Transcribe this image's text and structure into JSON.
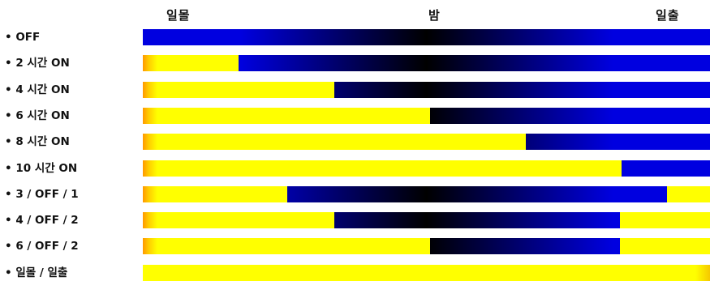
{
  "header": {
    "sunset": "일몰",
    "night": "밤",
    "sunrise": "일출"
  },
  "timeline": {
    "on_color": "#ffff00",
    "off_color": "#0000e0",
    "night_color": "#000000",
    "rows": [
      {
        "label": "• OFF",
        "segments": [
          {
            "state": "off",
            "from": 0.0,
            "to": 1.0
          }
        ]
      },
      {
        "label": "• 2 시간 ON",
        "segments": [
          {
            "state": "on",
            "from": 0.0,
            "to": 0.1688
          },
          {
            "state": "off",
            "from": 0.1688,
            "to": 1.0
          }
        ]
      },
      {
        "label": "• 4 시간 ON",
        "segments": [
          {
            "state": "on",
            "from": 0.0,
            "to": 0.3376
          },
          {
            "state": "off",
            "from": 0.3376,
            "to": 1.0
          }
        ]
      },
      {
        "label": "• 6 시간 ON",
        "segments": [
          {
            "state": "on",
            "from": 0.0,
            "to": 0.5064
          },
          {
            "state": "off",
            "from": 0.5064,
            "to": 1.0
          }
        ]
      },
      {
        "label": "• 8 시간 ON",
        "segments": [
          {
            "state": "on",
            "from": 0.0,
            "to": 0.6753
          },
          {
            "state": "off",
            "from": 0.6753,
            "to": 1.0
          }
        ]
      },
      {
        "label": "• 10 시간 ON",
        "segments": [
          {
            "state": "on",
            "from": 0.0,
            "to": 0.8441
          },
          {
            "state": "off",
            "from": 0.8441,
            "to": 1.0
          }
        ]
      },
      {
        "label": "• 3 / OFF / 1",
        "segments": [
          {
            "state": "on",
            "from": 0.0,
            "to": 0.2546
          },
          {
            "state": "off",
            "from": 0.2546,
            "to": 0.9242
          },
          {
            "state": "on",
            "from": 0.9242,
            "to": 1.0
          }
        ]
      },
      {
        "label": "• 4 / OFF / 2",
        "segments": [
          {
            "state": "on",
            "from": 0.0,
            "to": 0.3376
          },
          {
            "state": "off",
            "from": 0.3376,
            "to": 0.8412
          },
          {
            "state": "on",
            "from": 0.8412,
            "to": 1.0
          }
        ]
      },
      {
        "label": "• 6 / OFF / 2",
        "segments": [
          {
            "state": "on",
            "from": 0.0,
            "to": 0.5064
          },
          {
            "state": "off",
            "from": 0.5064,
            "to": 0.8412
          },
          {
            "state": "on",
            "from": 0.8412,
            "to": 1.0
          }
        ]
      },
      {
        "label": "• 일몰 / 일출",
        "segments": [
          {
            "state": "on",
            "from": 0.0,
            "to": 1.0
          }
        ]
      }
    ]
  }
}
